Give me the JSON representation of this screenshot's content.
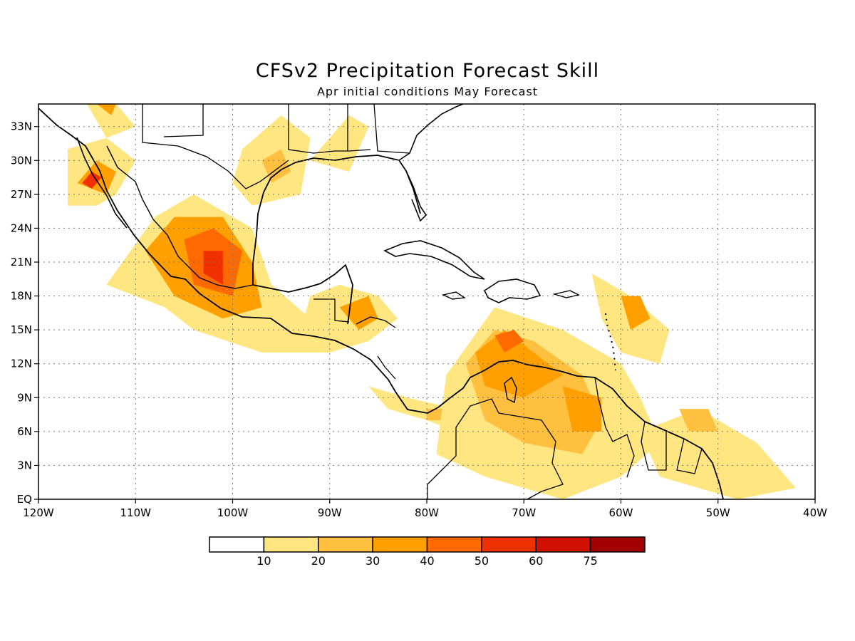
{
  "title": "CFSv2 Precipitation Forecast Skill",
  "subtitle": "Apr initial conditions  May Forecast",
  "map": {
    "lon_range": [
      -120,
      -40
    ],
    "lat_range": [
      0,
      35
    ],
    "lon_ticks": [
      {
        "value": -120,
        "label": "120W"
      },
      {
        "value": -110,
        "label": "110W"
      },
      {
        "value": -100,
        "label": "100W"
      },
      {
        "value": -90,
        "label": "90W"
      },
      {
        "value": -80,
        "label": "80W"
      },
      {
        "value": -70,
        "label": "70W"
      },
      {
        "value": -60,
        "label": "60W"
      },
      {
        "value": -50,
        "label": "50W"
      },
      {
        "value": -40,
        "label": "40W"
      }
    ],
    "lat_ticks": [
      {
        "value": 0,
        "label": "EQ"
      },
      {
        "value": 3,
        "label": "3N"
      },
      {
        "value": 6,
        "label": "6N"
      },
      {
        "value": 9,
        "label": "9N"
      },
      {
        "value": 12,
        "label": "12N"
      },
      {
        "value": 15,
        "label": "15N"
      },
      {
        "value": 18,
        "label": "18N"
      },
      {
        "value": 21,
        "label": "21N"
      },
      {
        "value": 24,
        "label": "24N"
      },
      {
        "value": 27,
        "label": "27N"
      },
      {
        "value": 30,
        "label": "30N"
      },
      {
        "value": 33,
        "label": "33N"
      }
    ],
    "grid": "dotted"
  },
  "colorbar": {
    "colors": [
      "#ffffff",
      "#ffe680",
      "#ffc040",
      "#ffa000",
      "#ff6a00",
      "#f03000",
      "#d01000",
      "#a00000"
    ],
    "labels": [
      "10",
      "20",
      "30",
      "40",
      "50",
      "60",
      "75"
    ]
  },
  "skill_regions": [
    {
      "name": "western-mexico",
      "polys": [
        {
          "level": 1,
          "pts": [
            [
              -107,
              17
            ],
            [
              -113,
              19
            ],
            [
              -108,
              25
            ],
            [
              -104,
              27
            ],
            [
              -98,
              24
            ],
            [
              -96,
              19
            ],
            [
              -92,
              16
            ],
            [
              -90,
              13
            ],
            [
              -97,
              13
            ],
            [
              -104,
              15
            ]
          ]
        },
        {
          "level": 3,
          "pts": [
            [
              -106,
              18
            ],
            [
              -109,
              22
            ],
            [
              -106,
              25
            ],
            [
              -101,
              25
            ],
            [
              -98,
              21
            ],
            [
              -97,
              17
            ],
            [
              -101,
              16
            ]
          ]
        },
        {
          "level": 4,
          "pts": [
            [
              -104,
              19
            ],
            [
              -105,
              23
            ],
            [
              -102,
              24
            ],
            [
              -99,
              22
            ],
            [
              -100,
              18
            ]
          ]
        },
        {
          "level": 5,
          "pts": [
            [
              -103,
              20
            ],
            [
              -103,
              22
            ],
            [
              -101,
              22
            ],
            [
              -101,
              19
            ]
          ]
        }
      ]
    },
    {
      "name": "baja-gulf",
      "polys": [
        {
          "level": 1,
          "pts": [
            [
              -117,
              26
            ],
            [
              -117,
              31
            ],
            [
              -113,
              32
            ],
            [
              -110,
              30
            ],
            [
              -112,
              27
            ],
            [
              -114,
              26
            ]
          ]
        },
        {
          "level": 3,
          "pts": [
            [
              -116,
              28
            ],
            [
              -114,
              30
            ],
            [
              -112,
              29
            ],
            [
              -113,
              27
            ]
          ]
        },
        {
          "level": 5,
          "pts": [
            [
              -115.5,
              28
            ],
            [
              -114.5,
              29
            ],
            [
              -113.5,
              28.5
            ],
            [
              -114.5,
              27.5
            ]
          ]
        }
      ]
    },
    {
      "name": "southwest-us",
      "polys": [
        {
          "level": 1,
          "pts": [
            [
              -115,
              35
            ],
            [
              -112,
              35
            ],
            [
              -110,
              33
            ],
            [
              -113,
              32
            ]
          ]
        },
        {
          "level": 3,
          "pts": [
            [
              -114,
              35
            ],
            [
              -112,
              35
            ],
            [
              -112.5,
              34
            ]
          ]
        }
      ]
    },
    {
      "name": "texas",
      "polys": [
        {
          "level": 1,
          "pts": [
            [
              -99,
              31
            ],
            [
              -95,
              34
            ],
            [
              -92,
              32
            ],
            [
              -93,
              27
            ],
            [
              -98,
              26
            ],
            [
              -100,
              28
            ]
          ]
        },
        {
          "level": 2,
          "pts": [
            [
              -97,
              30
            ],
            [
              -95,
              31
            ],
            [
              -94,
              29
            ],
            [
              -96,
              28
            ]
          ]
        }
      ]
    },
    {
      "name": "gulf-coast",
      "polys": [
        {
          "level": 1,
          "pts": [
            [
              -92,
              30
            ],
            [
              -88,
              34
            ],
            [
              -86,
              33
            ],
            [
              -88,
              29
            ]
          ]
        }
      ]
    },
    {
      "name": "central-america",
      "polys": [
        {
          "level": 1,
          "pts": [
            [
              -92,
              18
            ],
            [
              -89,
              19
            ],
            [
              -85,
              18
            ],
            [
              -83,
              16
            ],
            [
              -86,
              14
            ],
            [
              -90,
              13
            ],
            [
              -93,
              15
            ]
          ]
        },
        {
          "level": 3,
          "pts": [
            [
              -89,
              17
            ],
            [
              -86,
              18
            ],
            [
              -85,
              16
            ],
            [
              -87,
              15
            ]
          ]
        }
      ]
    },
    {
      "name": "panama-costa-rica",
      "polys": [
        {
          "level": 1,
          "pts": [
            [
              -86,
              10
            ],
            [
              -82,
              9
            ],
            [
              -77,
              8
            ],
            [
              -77,
              6
            ],
            [
              -80,
              7
            ],
            [
              -84,
              8
            ]
          ]
        },
        {
          "level": 2,
          "pts": [
            [
              -80,
              8
            ],
            [
              -78,
              8
            ],
            [
              -78,
              7
            ],
            [
              -80,
              7
            ]
          ]
        }
      ]
    },
    {
      "name": "caribbean-venezuela",
      "polys": [
        {
          "level": 1,
          "pts": [
            [
              -78,
              11
            ],
            [
              -73,
              17
            ],
            [
              -66,
              15
            ],
            [
              -60,
              12
            ],
            [
              -58,
              9
            ],
            [
              -56,
              5
            ],
            [
              -60,
              2
            ],
            [
              -66,
              0
            ],
            [
              -74,
              2
            ],
            [
              -79,
              4
            ]
          ]
        },
        {
          "level": 2,
          "pts": [
            [
              -76,
              12
            ],
            [
              -73,
              15
            ],
            [
              -69,
              14
            ],
            [
              -64,
              11
            ],
            [
              -62,
              7
            ],
            [
              -64,
              4
            ],
            [
              -70,
              5
            ],
            [
              -74,
              7
            ]
          ]
        },
        {
          "level": 3,
          "pts": [
            [
              -75,
              13
            ],
            [
              -72,
              15
            ],
            [
              -69,
              13
            ],
            [
              -66,
              11
            ],
            [
              -70,
              9
            ],
            [
              -74,
              10
            ]
          ]
        },
        {
          "level": 4,
          "pts": [
            [
              -73,
              14.5
            ],
            [
              -71,
              15
            ],
            [
              -70,
              14
            ],
            [
              -72,
              13
            ]
          ]
        },
        {
          "level": 3,
          "pts": [
            [
              -66,
              10
            ],
            [
              -62,
              9
            ],
            [
              -62,
              6
            ],
            [
              -65,
              6
            ]
          ]
        }
      ]
    },
    {
      "name": "lesser-antilles",
      "polys": [
        {
          "level": 1,
          "pts": [
            [
              -63,
              20
            ],
            [
              -59,
              18
            ],
            [
              -55,
              15
            ],
            [
              -56,
              12
            ],
            [
              -60,
              13
            ],
            [
              -62,
              16
            ]
          ]
        },
        {
          "level": 3,
          "pts": [
            [
              -60,
              18
            ],
            [
              -58,
              18
            ],
            [
              -57,
              16
            ],
            [
              -59,
              15
            ]
          ]
        }
      ]
    },
    {
      "name": "guiana-amazon",
      "polys": [
        {
          "level": 1,
          "pts": [
            [
              -58,
              6
            ],
            [
              -52,
              8
            ],
            [
              -46,
              5
            ],
            [
              -42,
              1
            ],
            [
              -48,
              0
            ],
            [
              -56,
              2
            ]
          ]
        },
        {
          "level": 2,
          "pts": [
            [
              -54,
              8
            ],
            [
              -51,
              8
            ],
            [
              -50,
              6
            ],
            [
              -53,
              6
            ]
          ]
        }
      ]
    }
  ]
}
